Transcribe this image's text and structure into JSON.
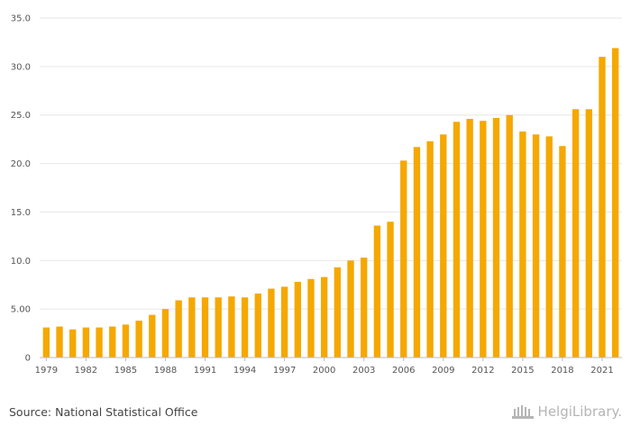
{
  "chart_data": {
    "type": "bar",
    "categories": [
      "1979",
      "1980",
      "1981",
      "1982",
      "1983",
      "1984",
      "1985",
      "1986",
      "1987",
      "1988",
      "1989",
      "1990",
      "1991",
      "1992",
      "1993",
      "1994",
      "1995",
      "1996",
      "1997",
      "1998",
      "1999",
      "2000",
      "2001",
      "2002",
      "2003",
      "2004",
      "2005",
      "2006",
      "2007",
      "2008",
      "2009",
      "2010",
      "2011",
      "2012",
      "2013",
      "2014",
      "2015",
      "2016",
      "2017",
      "2018",
      "2019",
      "2020",
      "2021",
      "2022"
    ],
    "x_tick_labels": [
      "1979",
      "1982",
      "1985",
      "1988",
      "1991",
      "1994",
      "1997",
      "2000",
      "2003",
      "2006",
      "2009",
      "2012",
      "2015",
      "2018",
      "2021"
    ],
    "values": [
      3.1,
      3.2,
      2.9,
      3.1,
      3.1,
      3.2,
      3.4,
      3.8,
      4.4,
      5.0,
      5.9,
      6.2,
      6.2,
      6.2,
      6.3,
      6.2,
      6.6,
      7.1,
      7.3,
      7.8,
      8.1,
      8.3,
      9.3,
      10.0,
      10.3,
      13.6,
      14.0,
      20.3,
      21.7,
      22.3,
      23.0,
      24.3,
      24.6,
      24.4,
      24.7,
      25.0,
      23.3,
      23.0,
      22.8,
      21.8,
      25.6,
      25.6,
      31.0,
      31.9
    ],
    "y_tick_labels": [
      "0",
      "5.00",
      "10.0",
      "15.0",
      "20.0",
      "25.0",
      "30.0",
      "35.0"
    ],
    "ylim": [
      0,
      35
    ],
    "grid": true,
    "bar_color": "#f5a800",
    "title": "",
    "xlabel": "",
    "ylabel": ""
  },
  "footer": {
    "source": "Source: National Statistical Office",
    "logo_text": "HelgiLibrary."
  }
}
